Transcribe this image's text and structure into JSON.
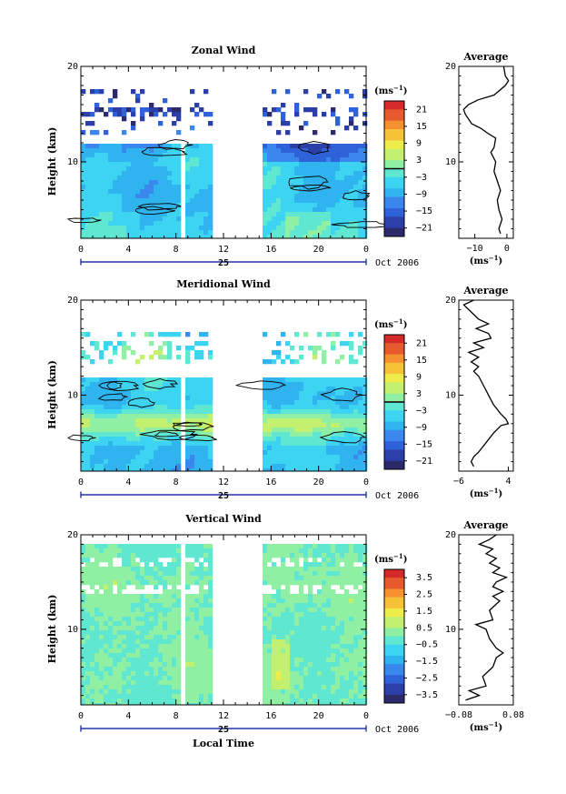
{
  "chart_data": [
    {
      "type": "heatmap",
      "title": "Zonal Wind",
      "ylabel": "Height (km)",
      "y_ticks": [
        "20",
        "10"
      ],
      "x_ticks": [
        "0",
        "4",
        "8",
        "12",
        "16",
        "20",
        "0"
      ],
      "date_label": "25",
      "date_suffix": "Oct 2006",
      "xlim": [
        0,
        24
      ],
      "ylim": [
        2,
        20
      ],
      "colorbar": {
        "unit": "(ms",
        "unit_sup": "−1",
        "unit_close": ")",
        "labels": [
          "21",
          "15",
          "9",
          "3",
          "−3",
          "−9",
          "−15",
          "−21"
        ],
        "range": [
          -24,
          24
        ],
        "contour_at": 0
      },
      "average": {
        "title": "Average",
        "xlim": [
          -15,
          2
        ],
        "x_ticks": [
          "−10",
          "0"
        ],
        "xlabel": "(ms",
        "xlabel_sup": "−1",
        "xlabel_close": ")",
        "y_ticks": [
          "20",
          "10"
        ],
        "profile": [
          [
            -2,
            2.5
          ],
          [
            -2.5,
            3
          ],
          [
            -1.5,
            4
          ],
          [
            -2.5,
            5
          ],
          [
            -3,
            6
          ],
          [
            -2,
            7
          ],
          [
            -3,
            8
          ],
          [
            -4,
            9
          ],
          [
            -3.5,
            10
          ],
          [
            -5,
            11
          ],
          [
            -4,
            11.5
          ],
          [
            -3.5,
            12.5
          ],
          [
            -6,
            13
          ],
          [
            -8,
            13.5
          ],
          [
            -11,
            14
          ],
          [
            -13,
            15
          ],
          [
            -13.5,
            15.5
          ],
          [
            -12,
            16
          ],
          [
            -9,
            16.5
          ],
          [
            -4,
            17
          ],
          [
            -0.5,
            18
          ],
          [
            0.5,
            18.5
          ],
          [
            -0.5,
            19
          ],
          [
            -1,
            20
          ]
        ]
      }
    },
    {
      "type": "heatmap",
      "title": "Meridional Wind",
      "ylabel": "Height (km)",
      "y_ticks": [
        "20",
        "10"
      ],
      "x_ticks": [
        "0",
        "4",
        "8",
        "12",
        "16",
        "20",
        "0"
      ],
      "date_label": "25",
      "date_suffix": "Oct 2006",
      "xlim": [
        0,
        24
      ],
      "ylim": [
        2,
        20
      ],
      "colorbar": {
        "unit": "(ms",
        "unit_sup": "−1",
        "unit_close": ")",
        "labels": [
          "21",
          "15",
          "9",
          "3",
          "−3",
          "−9",
          "−15",
          "−21"
        ],
        "range": [
          -24,
          24
        ],
        "contour_at": 0
      },
      "average": {
        "title": "Average",
        "xlim": [
          -6,
          5
        ],
        "x_ticks": [
          "−6",
          "4"
        ],
        "xlabel": "(ms",
        "xlabel_sup": "−1",
        "xlabel_close": ")",
        "y_ticks": [
          "20",
          "10"
        ],
        "profile": [
          [
            -3,
            2.5
          ],
          [
            -3.5,
            3
          ],
          [
            -3,
            3.5
          ],
          [
            -2,
            4
          ],
          [
            -0.5,
            5
          ],
          [
            1,
            6
          ],
          [
            2.5,
            6.8
          ],
          [
            4,
            7
          ],
          [
            3.5,
            7.5
          ],
          [
            2.5,
            8
          ],
          [
            1,
            9
          ],
          [
            0,
            10
          ],
          [
            -1,
            11
          ],
          [
            -2,
            12
          ],
          [
            -3,
            12.5
          ],
          [
            -2,
            13
          ],
          [
            -3.5,
            13.5
          ],
          [
            -2,
            14
          ],
          [
            -4,
            14.5
          ],
          [
            -1,
            15
          ],
          [
            -3,
            15.5
          ],
          [
            0.5,
            16
          ],
          [
            0,
            16.5
          ],
          [
            -2.5,
            17
          ],
          [
            0,
            17.5
          ],
          [
            -2,
            18
          ],
          [
            -4,
            19
          ],
          [
            -5,
            19.5
          ],
          [
            -3,
            20
          ]
        ]
      }
    },
    {
      "type": "heatmap",
      "title": "Vertical Wind",
      "ylabel": "Height (km)",
      "xlabel": "Local Time",
      "y_ticks": [
        "20",
        "10"
      ],
      "x_ticks": [
        "0",
        "4",
        "8",
        "12",
        "16",
        "20",
        "0"
      ],
      "date_label": "25",
      "date_suffix": "Oct 2006",
      "xlim": [
        0,
        24
      ],
      "ylim": [
        2,
        20
      ],
      "colorbar": {
        "unit": "(ms",
        "unit_sup": "−1",
        "unit_close": ")",
        "labels": [
          "3.5",
          "2.5",
          "1.5",
          "0.5",
          "−0.5",
          "−1.5",
          "−2.5",
          "−3.5"
        ],
        "range": [
          -4,
          4
        ]
      },
      "average": {
        "title": "Average",
        "xlim": [
          -0.08,
          0.08
        ],
        "x_ticks": [
          "−0.08",
          "0.08"
        ],
        "xlabel": "(ms",
        "xlabel_sup": "−1",
        "xlabel_close": ")",
        "y_ticks": [
          "20",
          "10"
        ],
        "profile": [
          [
            -0.06,
            2.5
          ],
          [
            -0.02,
            3
          ],
          [
            -0.05,
            3.5
          ],
          [
            0,
            4
          ],
          [
            -0.01,
            5
          ],
          [
            0.02,
            6
          ],
          [
            0.03,
            7
          ],
          [
            0.05,
            7.5
          ],
          [
            0.03,
            8
          ],
          [
            0.01,
            9
          ],
          [
            0,
            10
          ],
          [
            -0.03,
            10.5
          ],
          [
            0.02,
            11
          ],
          [
            0.01,
            12
          ],
          [
            0.04,
            13
          ],
          [
            0.02,
            13.5
          ],
          [
            0.05,
            14
          ],
          [
            0.02,
            14.5
          ],
          [
            0.03,
            15
          ],
          [
            0.06,
            15.5
          ],
          [
            0.02,
            16
          ],
          [
            0.04,
            16.5
          ],
          [
            0.01,
            17
          ],
          [
            0.03,
            17.5
          ],
          [
            0,
            18
          ],
          [
            0.02,
            18.5
          ],
          [
            -0.02,
            19
          ],
          [
            0.01,
            19.5
          ],
          [
            0.03,
            20
          ]
        ]
      }
    }
  ]
}
